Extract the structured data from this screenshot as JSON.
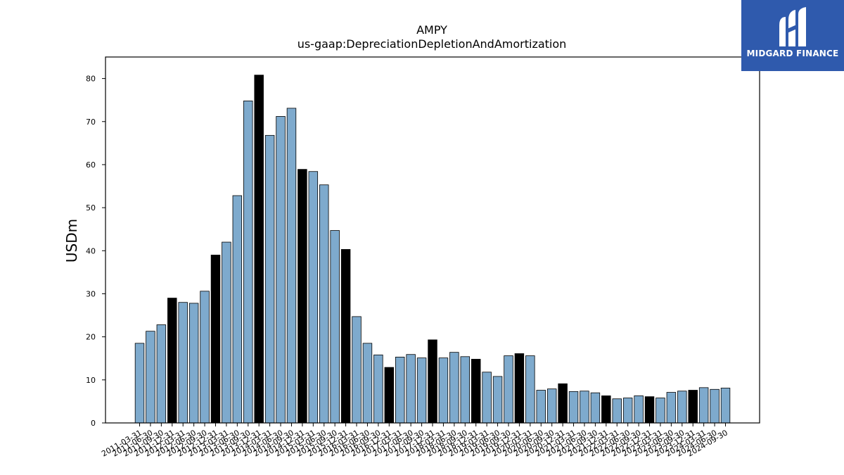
{
  "logo": {
    "text": "MIDGARD FINANCE",
    "background": "#2f5aad",
    "icon": "midgard-m-icon"
  },
  "chart_data": {
    "type": "bar",
    "title": "AMPY",
    "subtitle": "us-gaap:DepreciationDepletionAndAmortization",
    "xlabel": "",
    "ylabel": "USDm",
    "ylim": [
      0,
      85
    ],
    "yticks": [
      0,
      10,
      20,
      30,
      40,
      50,
      60,
      70,
      80
    ],
    "grid": false,
    "colors": {
      "quarter": "#7eaacd",
      "annual": "#000000",
      "edge": "#000000"
    },
    "categories": [
      "2011-03-31",
      "2011-06-30",
      "2011-09-30",
      "2011-12-31",
      "2012-03-31",
      "2012-06-30",
      "2012-09-30",
      "2012-12-31",
      "2013-03-31",
      "2013-06-30",
      "2013-09-30",
      "2013-12-31",
      "2014-03-31",
      "2014-06-30",
      "2014-09-30",
      "2014-12-31",
      "2015-03-31",
      "2015-06-30",
      "2015-09-30",
      "2015-12-31",
      "2016-03-31",
      "2016-06-30",
      "2016-09-30",
      "2016-12-31",
      "2017-03-31",
      "2017-06-30",
      "2017-09-30",
      "2017-12-31",
      "2018-03-31",
      "2018-06-30",
      "2018-09-30",
      "2018-12-31",
      "2019-03-31",
      "2019-06-30",
      "2019-09-30",
      "2019-12-31",
      "2020-03-31",
      "2020-06-30",
      "2020-09-30",
      "2020-12-31",
      "2021-03-31",
      "2021-06-30",
      "2021-09-30",
      "2021-12-31",
      "2022-03-31",
      "2022-06-30",
      "2022-09-30",
      "2022-12-31",
      "2023-03-31",
      "2023-06-30",
      "2023-09-30",
      "2023-12-31",
      "2024-03-31",
      "2024-06-30",
      "2024-09-30"
    ],
    "values": [
      18.5,
      21.3,
      22.8,
      29.0,
      28.0,
      27.8,
      30.6,
      39.0,
      42.0,
      52.8,
      74.8,
      80.8,
      66.8,
      71.2,
      73.1,
      58.9,
      58.4,
      55.3,
      44.7,
      40.3,
      24.7,
      18.5,
      15.8,
      12.9,
      15.3,
      15.9,
      15.1,
      19.3,
      15.1,
      16.4,
      15.4,
      14.8,
      11.8,
      10.8,
      15.6,
      16.1,
      15.6,
      7.6,
      7.9,
      9.1,
      7.3,
      7.4,
      7.0,
      6.3,
      5.6,
      5.8,
      6.3,
      6.1,
      5.8,
      7.1,
      7.4,
      7.6,
      8.2,
      7.8,
      8.1
    ]
  }
}
